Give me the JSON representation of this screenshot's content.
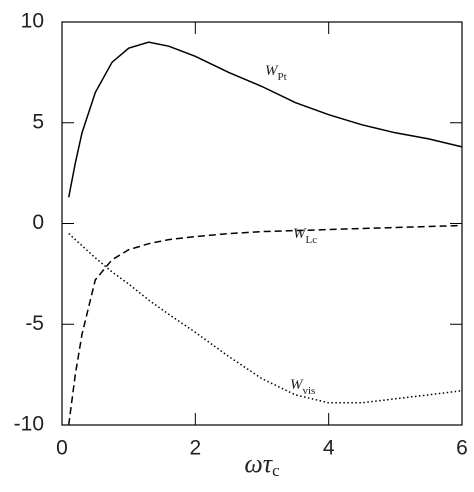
{
  "chart_data": {
    "type": "line",
    "x": [
      0.1,
      0.2,
      0.3,
      0.5,
      0.75,
      1,
      1.3,
      1.6,
      2,
      2.5,
      3,
      3.5,
      4,
      4.5,
      5,
      5.5,
      6
    ],
    "series": [
      {
        "name": "W_Pt",
        "color": "#000000",
        "dash": "solid",
        "values": [
          1.3,
          3,
          4.5,
          6.5,
          8,
          8.7,
          9,
          8.8,
          8.3,
          7.5,
          6.8,
          6.0,
          5.4,
          4.9,
          4.5,
          4.2,
          3.8
        ]
      },
      {
        "name": "W_Lc",
        "color": "#000000",
        "dash": "dashed",
        "values": [
          -10,
          -7.5,
          -5.5,
          -2.8,
          -1.8,
          -1.3,
          -1.0,
          -0.8,
          -0.65,
          -0.5,
          -0.4,
          -0.35,
          -0.3,
          -0.25,
          -0.2,
          -0.15,
          -0.1
        ]
      },
      {
        "name": "W_vis",
        "color": "#000000",
        "dash": "dotted",
        "values": [
          -0.5,
          -0.8,
          -1.1,
          -1.7,
          -2.4,
          -3.0,
          -3.8,
          -4.5,
          -5.4,
          -6.6,
          -7.7,
          -8.5,
          -8.9,
          -8.9,
          -8.7,
          -8.5,
          -8.3
        ]
      }
    ],
    "annotations": [
      {
        "main": "W",
        "sub": "Pt"
      },
      {
        "main": "W",
        "sub": "Lc"
      },
      {
        "main": "W",
        "sub": "vis"
      }
    ],
    "x_label": {
      "main": "ωτ",
      "sub": "c"
    },
    "xlim": [
      0,
      6
    ],
    "xticks": [
      0,
      2,
      4,
      6
    ],
    "ylim": [
      -10,
      10
    ],
    "yticks": [
      -10,
      -5,
      0,
      5,
      10
    ]
  }
}
